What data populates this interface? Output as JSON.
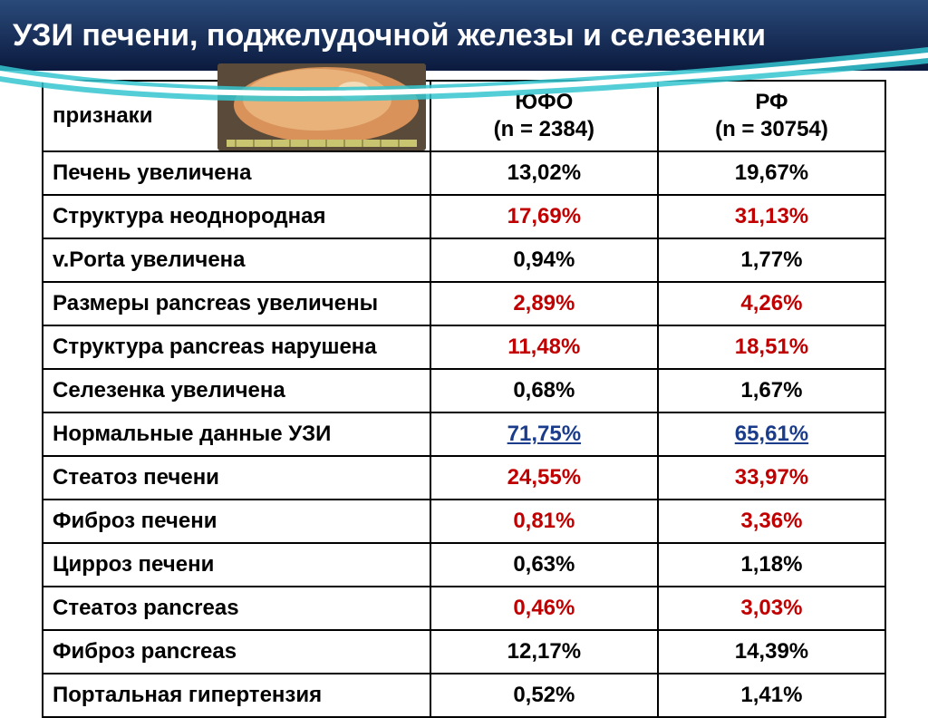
{
  "title": "УЗИ печени, поджелудочной железы и селезенки",
  "columns": {
    "c1": "признаки",
    "c2": "ЮФО\n(n = 2384)",
    "c3": "РФ\n(n = 30754)"
  },
  "rows": [
    {
      "label": "Печень увеличена",
      "v1": "13,02%",
      "s1": "blk",
      "v2": "19,67%",
      "s2": "blk"
    },
    {
      "label": "Структура неоднородная",
      "v1": "17,69%",
      "s1": "red",
      "v2": "31,13%",
      "s2": "red"
    },
    {
      "label": "v.Porta увеличена",
      "v1": "0,94%",
      "s1": "blk",
      "v2": "1,77%",
      "s2": "blk"
    },
    {
      "label": "Размеры pancreas увеличены",
      "v1": "2,89%",
      "s1": "red",
      "v2": "4,26%",
      "s2": "red"
    },
    {
      "label": "Структура pancreas нарушена",
      "v1": "11,48%",
      "s1": "red",
      "v2": "18,51%",
      "s2": "red"
    },
    {
      "label": "Селезенка увеличена",
      "v1": "0,68%",
      "s1": "blk",
      "v2": "1,67%",
      "s2": "blk"
    },
    {
      "label": "Нормальные данные УЗИ",
      "v1": "71,75%",
      "s1": "blue-ul",
      "v2": "65,61%",
      "s2": "blue-ul"
    },
    {
      "label": "Стеатоз печени",
      "v1": "24,55%",
      "s1": "red",
      "v2": "33,97%",
      "s2": "red"
    },
    {
      "label": "Фиброз печени",
      "v1": "0,81%",
      "s1": "red",
      "v2": "3,36%",
      "s2": "red"
    },
    {
      "label": "Цирроз печени",
      "v1": "0,63%",
      "s1": "blk",
      "v2": "1,18%",
      "s2": "blk"
    },
    {
      "label": "Стеатоз pancreas",
      "v1": "0,46%",
      "s1": "red",
      "v2": "3,03%",
      "s2": "red"
    },
    {
      "label": "Фиброз pancreas",
      "v1": "12,17%",
      "s1": "blk",
      "v2": "14,39%",
      "s2": "blk"
    },
    {
      "label": "Портальная гипертензия",
      "v1": "0,52%",
      "s1": "blk",
      "v2": "1,41%",
      "s2": "blk"
    }
  ],
  "styling": {
    "header_bg_gradient": [
      "#2a4a7a",
      "#0b1a3e"
    ],
    "header_text_color": "#ffffff",
    "swoosh_main": "#35c6d0",
    "swoosh_core": "#ffffff",
    "table_border": "#000000",
    "red": "#c00000",
    "blue": "#1a3c8a",
    "font_family": "Arial",
    "title_fontsize": 34,
    "cell_fontsize": 24,
    "table_width_pct": [
      46,
      27,
      27
    ]
  },
  "liver_photo": {
    "note": "photographic liver specimen overlay — approximated with gradient",
    "dominant_colors": [
      "#e8b27a",
      "#d8925a",
      "#6c4a30"
    ]
  }
}
